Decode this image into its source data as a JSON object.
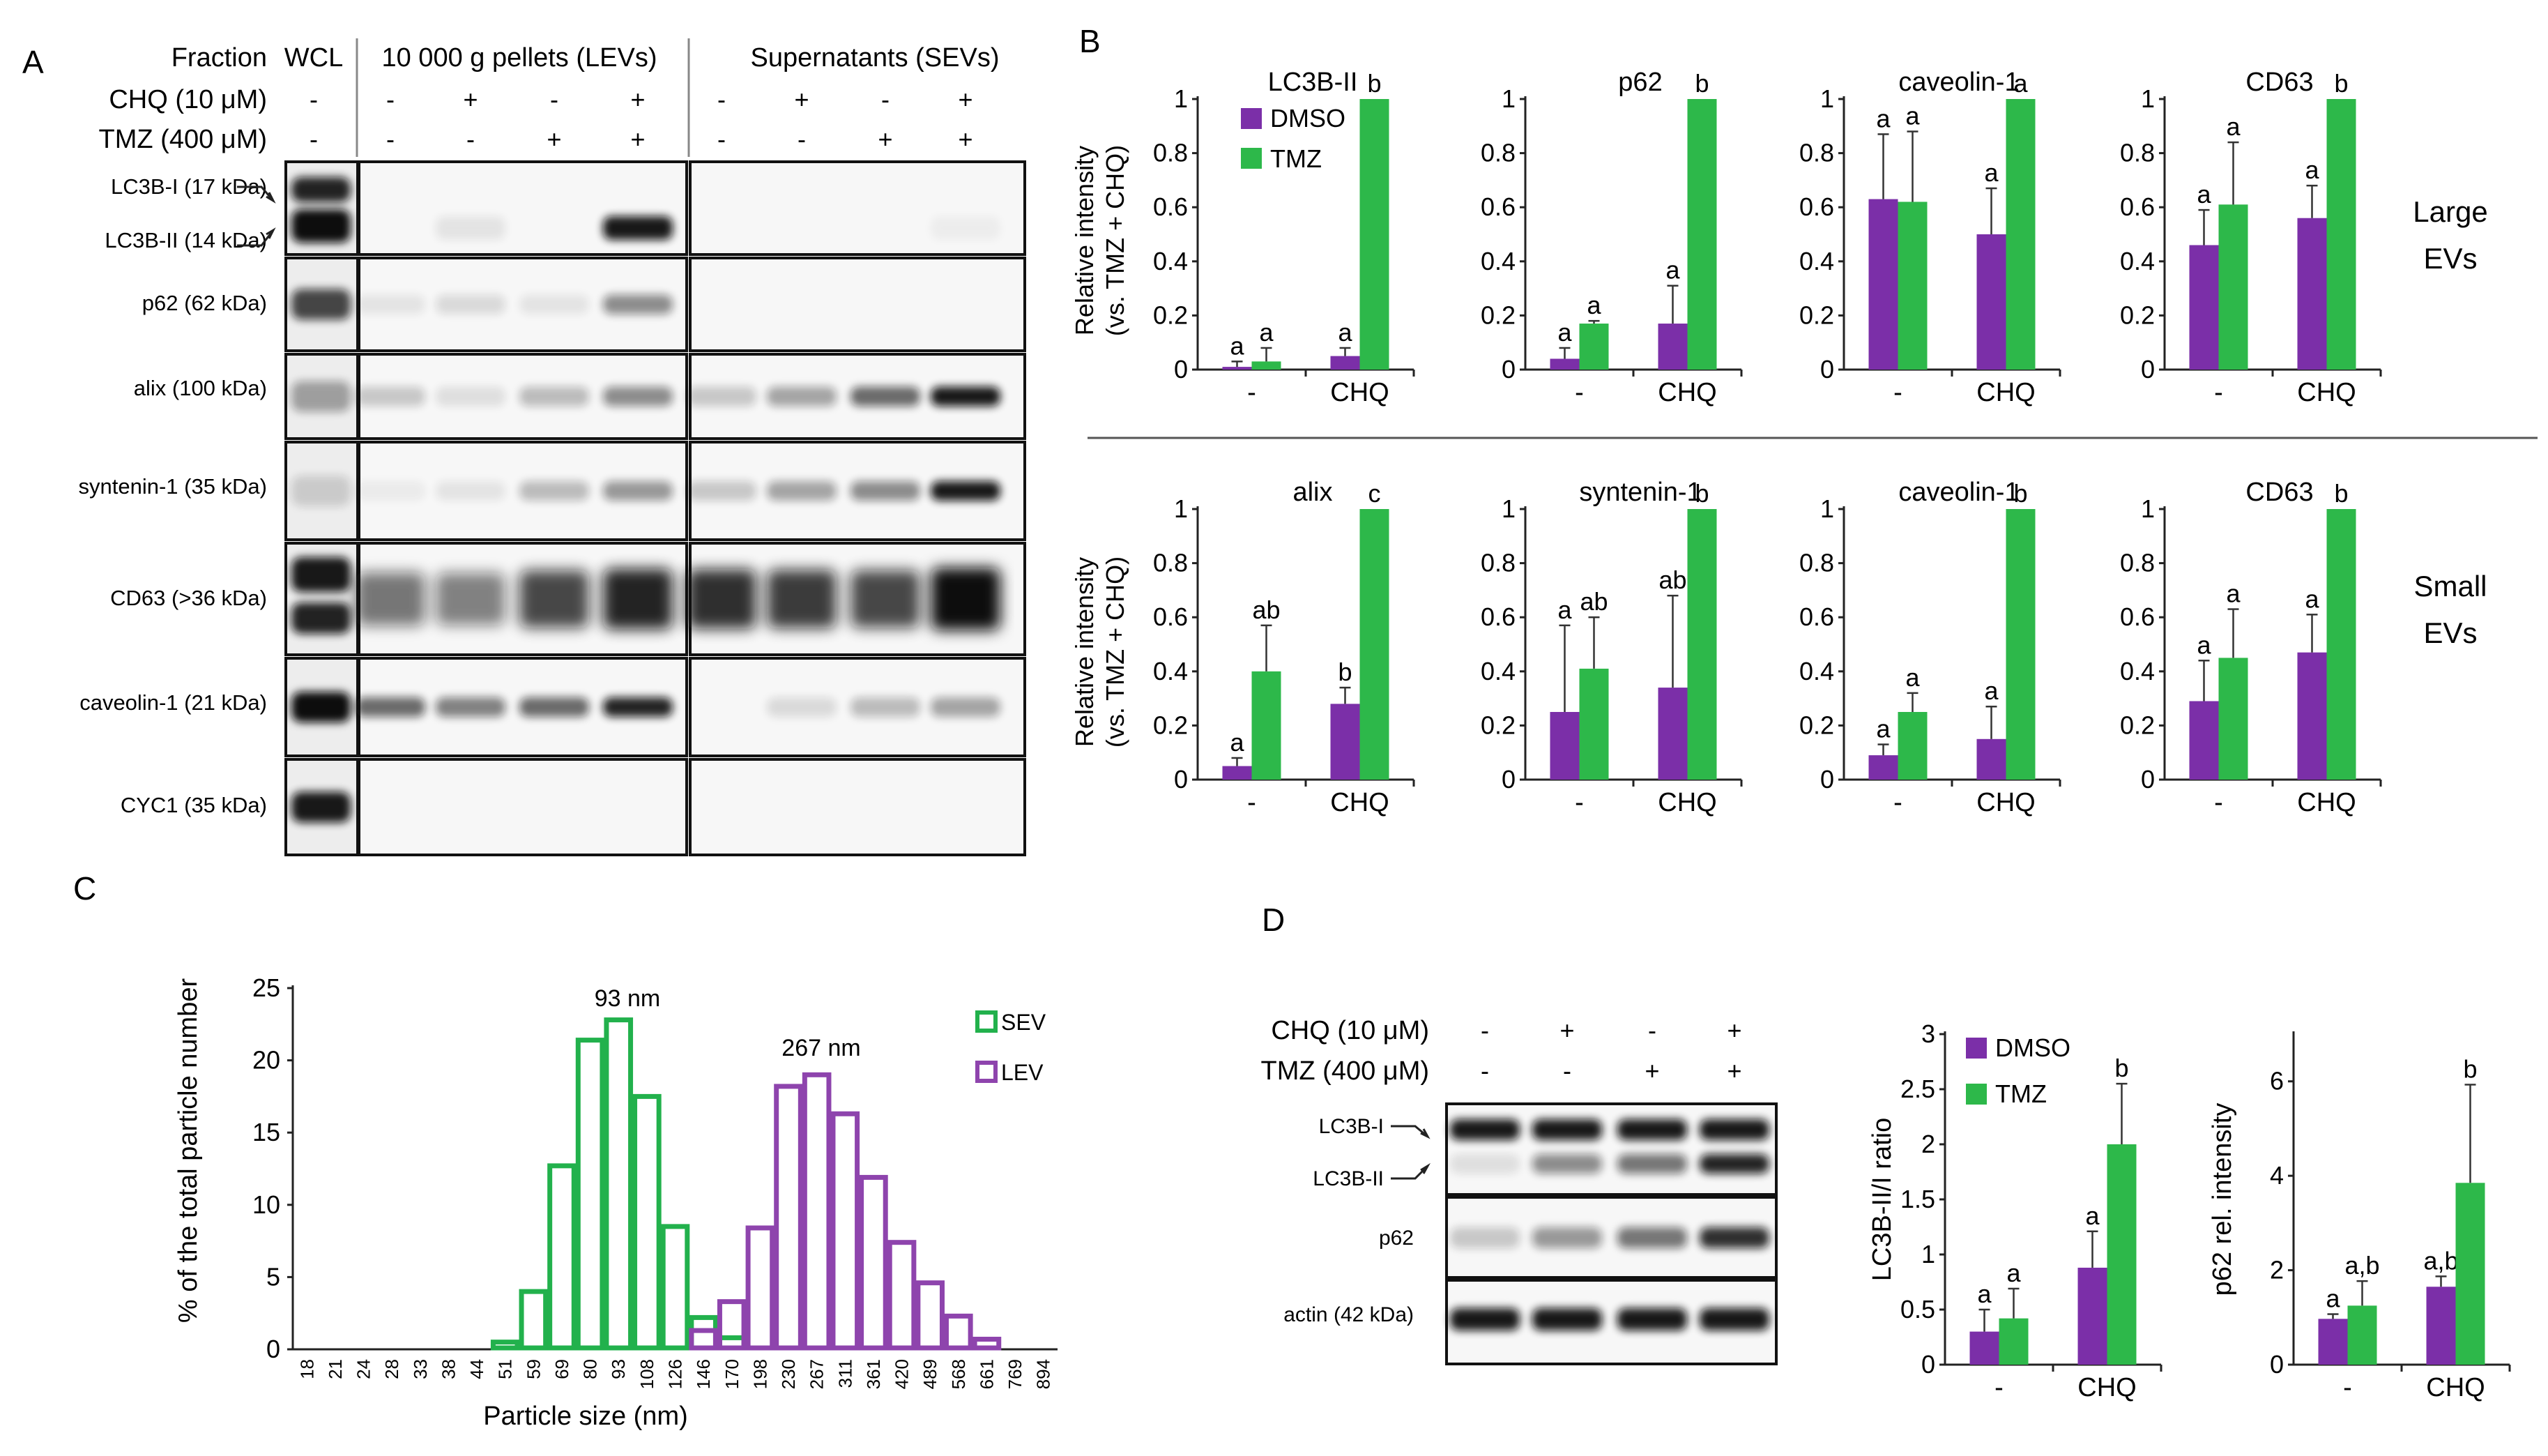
{
  "colors": {
    "dmso": "#7b2fa8",
    "tmz": "#2db84a",
    "sev": "#22b14c",
    "lev": "#8e44ad",
    "axis": "#222222",
    "band": "#111111"
  },
  "panel_letters": [
    "A",
    "B",
    "C",
    "D"
  ],
  "panelA": {
    "header_fraction": "Fraction",
    "header_wcl": "WCL",
    "header_lev": "10 000 g pellets (LEVs)",
    "header_sev": "Supernatants (SEVs)",
    "row_chq_label": "CHQ (10 μM)",
    "row_tmz_label": "TMZ (400 μM)",
    "chq_signs": [
      "-",
      "-",
      "+",
      "-",
      "+",
      "-",
      "+",
      "-",
      "+"
    ],
    "tmz_signs": [
      "-",
      "-",
      "-",
      "+",
      "+",
      "-",
      "-",
      "+",
      "+"
    ],
    "blot_labels": [
      "LC3B-I (17 kDa)",
      "LC3B-II (14 kDa)",
      "p62 (62 kDa)",
      "alix  (100 kDa)",
      "syntenin-1 (35 kDa)",
      "CD63 (>36 kDa)",
      "caveolin-1 (21 kDa)",
      "CYC1 (35 kDa)"
    ]
  },
  "panelB": {
    "y_label_line1": "Relative intensity",
    "y_label_line2": "(vs. TMZ + CHQ)",
    "row_labels": [
      [
        "Large",
        "EVs"
      ],
      [
        "Small",
        "EVs"
      ]
    ],
    "legend": [
      "DMSO",
      "TMZ"
    ],
    "categories": [
      "-",
      "CHQ"
    ],
    "yticks": [
      "0",
      "0.2",
      "0.4",
      "0.6",
      "0.8",
      "1"
    ]
  },
  "panelC": {
    "ylabel": "% of the total particle number",
    "xlabel": "Particle size (nm)",
    "yticks": [
      "0",
      "5",
      "10",
      "15",
      "20",
      "25"
    ],
    "peak_sev": "93 nm",
    "peak_lev": "267 nm",
    "legend": [
      "SEV",
      "LEV"
    ]
  },
  "panelD": {
    "row_chq_label": "CHQ (10 μM)",
    "row_tmz_label": "TMZ (400 μM)",
    "chq_signs": [
      "-",
      "+",
      "-",
      "+"
    ],
    "tmz_signs": [
      "-",
      "-",
      "+",
      "+"
    ],
    "blot_labels": [
      "LC3B-I",
      "LC3B-II",
      "p62",
      "actin (42 kDa)"
    ],
    "legend": [
      "DMSO",
      "TMZ"
    ],
    "categories": [
      "-",
      "CHQ"
    ]
  },
  "chart_data": [
    {
      "id": "B-LEV-LC3B-II",
      "type": "bar",
      "title": "LC3B-II",
      "categories": [
        "-",
        "CHQ"
      ],
      "ylim": [
        0,
        1
      ],
      "series": [
        {
          "name": "DMSO",
          "values": [
            0.01,
            0.05
          ],
          "errors": [
            0.02,
            0.03
          ]
        },
        {
          "name": "TMZ",
          "values": [
            0.03,
            1.0
          ],
          "errors": [
            0.05,
            0
          ]
        }
      ],
      "letters": [
        [
          "a",
          "a"
        ],
        [
          "a",
          "b"
        ]
      ]
    },
    {
      "id": "B-LEV-p62",
      "type": "bar",
      "title": "p62",
      "categories": [
        "-",
        "CHQ"
      ],
      "ylim": [
        0,
        1
      ],
      "series": [
        {
          "name": "DMSO",
          "values": [
            0.04,
            0.17
          ],
          "errors": [
            0.04,
            0.14
          ]
        },
        {
          "name": "TMZ",
          "values": [
            0.17,
            1.0
          ],
          "errors": [
            0.01,
            0
          ]
        }
      ],
      "letters": [
        [
          "a",
          "a"
        ],
        [
          "a",
          "b"
        ]
      ]
    },
    {
      "id": "B-LEV-caveolin-1",
      "type": "bar",
      "title": "caveolin-1",
      "categories": [
        "-",
        "CHQ"
      ],
      "ylim": [
        0,
        1
      ],
      "series": [
        {
          "name": "DMSO",
          "values": [
            0.63,
            0.5
          ],
          "errors": [
            0.24,
            0.17
          ]
        },
        {
          "name": "TMZ",
          "values": [
            0.62,
            1.0
          ],
          "errors": [
            0.26,
            0
          ]
        }
      ],
      "letters": [
        [
          "a",
          "a"
        ],
        [
          "a",
          "a"
        ]
      ]
    },
    {
      "id": "B-LEV-CD63",
      "type": "bar",
      "title": "CD63",
      "categories": [
        "-",
        "CHQ"
      ],
      "ylim": [
        0,
        1
      ],
      "series": [
        {
          "name": "DMSO",
          "values": [
            0.46,
            0.56
          ],
          "errors": [
            0.13,
            0.12
          ]
        },
        {
          "name": "TMZ",
          "values": [
            0.61,
            1.0
          ],
          "errors": [
            0.23,
            0
          ]
        }
      ],
      "letters": [
        [
          "a",
          "a"
        ],
        [
          "a",
          "b"
        ]
      ]
    },
    {
      "id": "B-SEV-alix",
      "type": "bar",
      "title": "alix",
      "categories": [
        "-",
        "CHQ"
      ],
      "ylim": [
        0,
        1
      ],
      "series": [
        {
          "name": "DMSO",
          "values": [
            0.05,
            0.28
          ],
          "errors": [
            0.03,
            0.06
          ]
        },
        {
          "name": "TMZ",
          "values": [
            0.4,
            1.0
          ],
          "errors": [
            0.17,
            0
          ]
        }
      ],
      "letters": [
        [
          "a",
          "ab"
        ],
        [
          "b",
          "c"
        ]
      ]
    },
    {
      "id": "B-SEV-syntenin-1",
      "type": "bar",
      "title": "syntenin-1",
      "categories": [
        "-",
        "CHQ"
      ],
      "ylim": [
        0,
        1
      ],
      "series": [
        {
          "name": "DMSO",
          "values": [
            0.25,
            0.34
          ],
          "errors": [
            0.32,
            0.34
          ]
        },
        {
          "name": "TMZ",
          "values": [
            0.41,
            1.0
          ],
          "errors": [
            0.19,
            0
          ]
        }
      ],
      "letters": [
        [
          "a",
          "ab"
        ],
        [
          "ab",
          "b"
        ]
      ]
    },
    {
      "id": "B-SEV-caveolin-1",
      "type": "bar",
      "title": "caveolin-1",
      "categories": [
        "-",
        "CHQ"
      ],
      "ylim": [
        0,
        1
      ],
      "series": [
        {
          "name": "DMSO",
          "values": [
            0.09,
            0.15
          ],
          "errors": [
            0.04,
            0.12
          ]
        },
        {
          "name": "TMZ",
          "values": [
            0.25,
            1.0
          ],
          "errors": [
            0.07,
            0
          ]
        }
      ],
      "letters": [
        [
          "a",
          "a"
        ],
        [
          "a",
          "b"
        ]
      ]
    },
    {
      "id": "B-SEV-CD63",
      "type": "bar",
      "title": "CD63",
      "categories": [
        "-",
        "CHQ"
      ],
      "ylim": [
        0,
        1
      ],
      "series": [
        {
          "name": "DMSO",
          "values": [
            0.29,
            0.47
          ],
          "errors": [
            0.15,
            0.14
          ]
        },
        {
          "name": "TMZ",
          "values": [
            0.45,
            1.0
          ],
          "errors": [
            0.18,
            0
          ]
        }
      ],
      "letters": [
        [
          "a",
          "a"
        ],
        [
          "a",
          "b"
        ]
      ]
    },
    {
      "id": "C-size-distribution",
      "type": "bar",
      "xlabel": "Particle size (nm)",
      "ylabel": "% of the total particle number",
      "ylim": [
        0,
        25
      ],
      "categories": [
        "18",
        "21",
        "24",
        "28",
        "33",
        "38",
        "44",
        "51",
        "59",
        "69",
        "80",
        "93",
        "108",
        "126",
        "146",
        "170",
        "198",
        "230",
        "267",
        "311",
        "361",
        "420",
        "489",
        "568",
        "661",
        "769",
        "894"
      ],
      "series": [
        {
          "name": "SEV",
          "values": [
            0,
            0,
            0,
            0,
            0,
            0,
            0,
            0.5,
            4,
            12.7,
            21.4,
            22.8,
            17.5,
            8.5,
            2.2,
            0.8,
            0,
            0,
            0,
            0,
            0,
            0,
            0,
            0,
            0,
            0,
            0
          ]
        },
        {
          "name": "LEV",
          "values": [
            0,
            0,
            0,
            0,
            0,
            0,
            0,
            0,
            0,
            0,
            0,
            0,
            0,
            0,
            1.3,
            3.3,
            8.4,
            18.2,
            19.0,
            16.3,
            11.9,
            7.4,
            4.6,
            2.3,
            0.7,
            0,
            0
          ]
        }
      ],
      "annotations": [
        "93 nm",
        "267 nm"
      ]
    },
    {
      "id": "D-LC3B-II-ratio",
      "type": "bar",
      "ylabel": "LC3B-II/I ratio",
      "categories": [
        "-",
        "CHQ"
      ],
      "ylim": [
        0,
        3
      ],
      "yticks": [
        "0",
        "0.5",
        "1",
        "1.5",
        "2",
        "2.5",
        "3"
      ],
      "series": [
        {
          "name": "DMSO",
          "values": [
            0.3,
            0.88
          ],
          "errors": [
            0.2,
            0.33
          ]
        },
        {
          "name": "TMZ",
          "values": [
            0.42,
            2.0
          ],
          "errors": [
            0.27,
            0.55
          ]
        }
      ],
      "letters": [
        [
          "a",
          "a"
        ],
        [
          "a",
          "b"
        ]
      ]
    },
    {
      "id": "D-p62",
      "type": "bar",
      "ylabel": "p62 rel. intensity",
      "categories": [
        "-",
        "CHQ"
      ],
      "ylim": [
        0,
        7
      ],
      "yticks": [
        "0",
        "2",
        "4",
        "6"
      ],
      "series": [
        {
          "name": "DMSO",
          "values": [
            0.97,
            1.65
          ],
          "errors": [
            0.1,
            0.22
          ]
        },
        {
          "name": "TMZ",
          "values": [
            1.25,
            3.85
          ],
          "errors": [
            0.52,
            2.08
          ]
        }
      ],
      "letters": [
        [
          "a",
          "a,b"
        ],
        [
          "a,b",
          "b"
        ]
      ]
    }
  ]
}
